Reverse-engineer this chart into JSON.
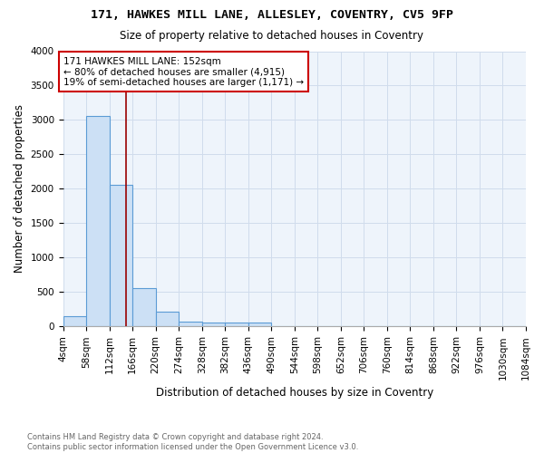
{
  "title_line1": "171, HAWKES MILL LANE, ALLESLEY, COVENTRY, CV5 9FP",
  "title_line2": "Size of property relative to detached houses in Coventry",
  "xlabel": "Distribution of detached houses by size in Coventry",
  "ylabel": "Number of detached properties",
  "footnote": "Contains HM Land Registry data © Crown copyright and database right 2024.\nContains public sector information licensed under the Open Government Licence v3.0.",
  "bin_edges": [
    4,
    58,
    112,
    166,
    220,
    274,
    328,
    382,
    436,
    490,
    544,
    598,
    652,
    706,
    760,
    814,
    868,
    922,
    976,
    1030,
    1084
  ],
  "bin_counts": [
    150,
    3055,
    2055,
    560,
    220,
    75,
    55,
    55,
    55,
    0,
    0,
    0,
    0,
    0,
    0,
    0,
    0,
    0,
    0,
    0
  ],
  "bar_facecolor": "#cce0f5",
  "bar_edgecolor": "#5b9bd5",
  "grid_color": "#d0dcec",
  "bg_color": "#eef4fb",
  "vline_x": 152,
  "vline_color": "#990000",
  "annotation_text": "171 HAWKES MILL LANE: 152sqm\n← 80% of detached houses are smaller (4,915)\n19% of semi-detached houses are larger (1,171) →",
  "annotation_bbox_color": "#cc0000",
  "ylim": [
    0,
    4000
  ],
  "yticks": [
    0,
    500,
    1000,
    1500,
    2000,
    2500,
    3000,
    3500,
    4000
  ],
  "title_fontsize": 9.5,
  "subtitle_fontsize": 8.5,
  "tick_fontsize": 7.5,
  "ylabel_fontsize": 8.5,
  "xlabel_fontsize": 8.5,
  "annot_fontsize": 7.5
}
